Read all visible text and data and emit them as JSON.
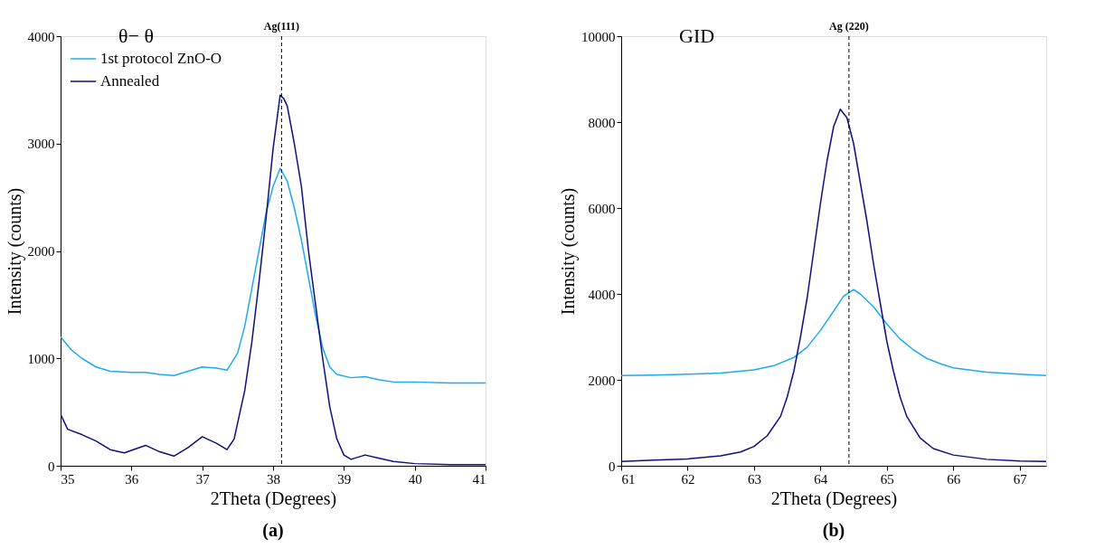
{
  "chart_data": [
    {
      "type": "line",
      "xlabel": "2Theta (Degrees)",
      "ylabel": "Intensity (counts)",
      "annotations": [
        "θ− θ",
        "(a)"
      ],
      "xlim": [
        35,
        41
      ],
      "xticks": [
        35,
        36,
        37,
        38,
        39,
        40,
        41
      ],
      "ylim": [
        0,
        4000
      ],
      "yticks": [
        0,
        1000,
        2000,
        3000,
        4000
      ],
      "legend": "top left",
      "grid": false,
      "ref_lines": [
        {
          "axis": "x",
          "value": 38.12,
          "label": "Ag(111)",
          "line_style": "dashed",
          "color": "#000000"
        }
      ],
      "series": [
        {
          "name": "1st protocol ZnO-O",
          "color": "#1eaaf1",
          "x": [
            35,
            35.15,
            35.3,
            35.5,
            35.7,
            36.0,
            36.2,
            36.4,
            36.6,
            36.8,
            37.0,
            37.2,
            37.35,
            37.5,
            37.6,
            37.7,
            37.8,
            37.9,
            38.0,
            38.1,
            38.2,
            38.3,
            38.4,
            38.5,
            38.6,
            38.7,
            38.8,
            38.9,
            39.1,
            39.3,
            39.5,
            39.7,
            40.0,
            40.5,
            41
          ],
          "values": [
            1200,
            1080,
            1000,
            920,
            880,
            870,
            870,
            850,
            840,
            880,
            920,
            910,
            890,
            1050,
            1300,
            1650,
            2000,
            2350,
            2600,
            2770,
            2650,
            2400,
            2100,
            1750,
            1400,
            1100,
            920,
            850,
            820,
            830,
            800,
            780,
            780,
            770,
            770
          ]
        },
        {
          "name": "Annealed",
          "color": "#0d0f80",
          "x": [
            35,
            35.1,
            35.3,
            35.5,
            35.7,
            35.9,
            36.2,
            36.4,
            36.6,
            36.8,
            37.0,
            37.2,
            37.35,
            37.45,
            37.6,
            37.7,
            37.8,
            37.9,
            38.0,
            38.1,
            38.15,
            38.2,
            38.3,
            38.4,
            38.5,
            38.6,
            38.7,
            38.8,
            38.9,
            39.0,
            39.1,
            39.3,
            39.5,
            39.7,
            40.0,
            40.5,
            41
          ],
          "values": [
            480,
            340,
            290,
            230,
            150,
            120,
            190,
            130,
            90,
            170,
            270,
            210,
            150,
            250,
            700,
            1150,
            1700,
            2300,
            2950,
            3450,
            3420,
            3350,
            3000,
            2600,
            2000,
            1500,
            1000,
            550,
            250,
            100,
            60,
            100,
            70,
            40,
            20,
            10,
            10
          ]
        }
      ]
    },
    {
      "type": "line",
      "xlabel": "2Theta (Degrees)",
      "ylabel": "Intensity (counts)",
      "annotations": [
        "GID",
        "(b)"
      ],
      "xlim": [
        61,
        67.4
      ],
      "xticks": [
        61,
        62,
        63,
        64,
        65,
        66,
        67
      ],
      "ylim": [
        0,
        10000
      ],
      "yticks": [
        0,
        2000,
        4000,
        6000,
        8000,
        10000
      ],
      "legend": "top left",
      "grid": false,
      "ref_lines": [
        {
          "axis": "x",
          "value": 64.43,
          "label": "Ag (220)",
          "line_style": "dashed",
          "color": "#000000"
        }
      ],
      "series": [
        {
          "name": "1st protocol ZnO-O",
          "color": "#1eaaf1",
          "x": [
            61,
            61.5,
            62,
            62.5,
            63,
            63.3,
            63.6,
            63.8,
            64.0,
            64.2,
            64.35,
            64.5,
            64.6,
            64.8,
            65.0,
            65.2,
            65.4,
            65.6,
            65.8,
            66.0,
            66.5,
            67.0,
            67.4
          ],
          "values": [
            2100,
            2110,
            2130,
            2160,
            2230,
            2330,
            2520,
            2760,
            3150,
            3600,
            3950,
            4100,
            4000,
            3700,
            3300,
            2950,
            2700,
            2500,
            2380,
            2280,
            2180,
            2130,
            2100
          ]
        },
        {
          "name": "Annealed",
          "color": "#0d0f80",
          "x": [
            61,
            61.5,
            62,
            62.5,
            62.8,
            63.0,
            63.2,
            63.4,
            63.5,
            63.6,
            63.7,
            63.8,
            63.9,
            64.0,
            64.1,
            64.2,
            64.3,
            64.4,
            64.5,
            64.6,
            64.7,
            64.8,
            64.9,
            65.0,
            65.1,
            65.2,
            65.3,
            65.5,
            65.7,
            66.0,
            66.5,
            67.0,
            67.4
          ],
          "values": [
            100,
            130,
            160,
            230,
            320,
            450,
            700,
            1150,
            1600,
            2200,
            3000,
            3900,
            5000,
            6100,
            7100,
            7900,
            8300,
            8100,
            7500,
            6600,
            5700,
            4700,
            3800,
            2900,
            2200,
            1600,
            1150,
            650,
            400,
            250,
            150,
            110,
            100
          ]
        }
      ]
    }
  ]
}
